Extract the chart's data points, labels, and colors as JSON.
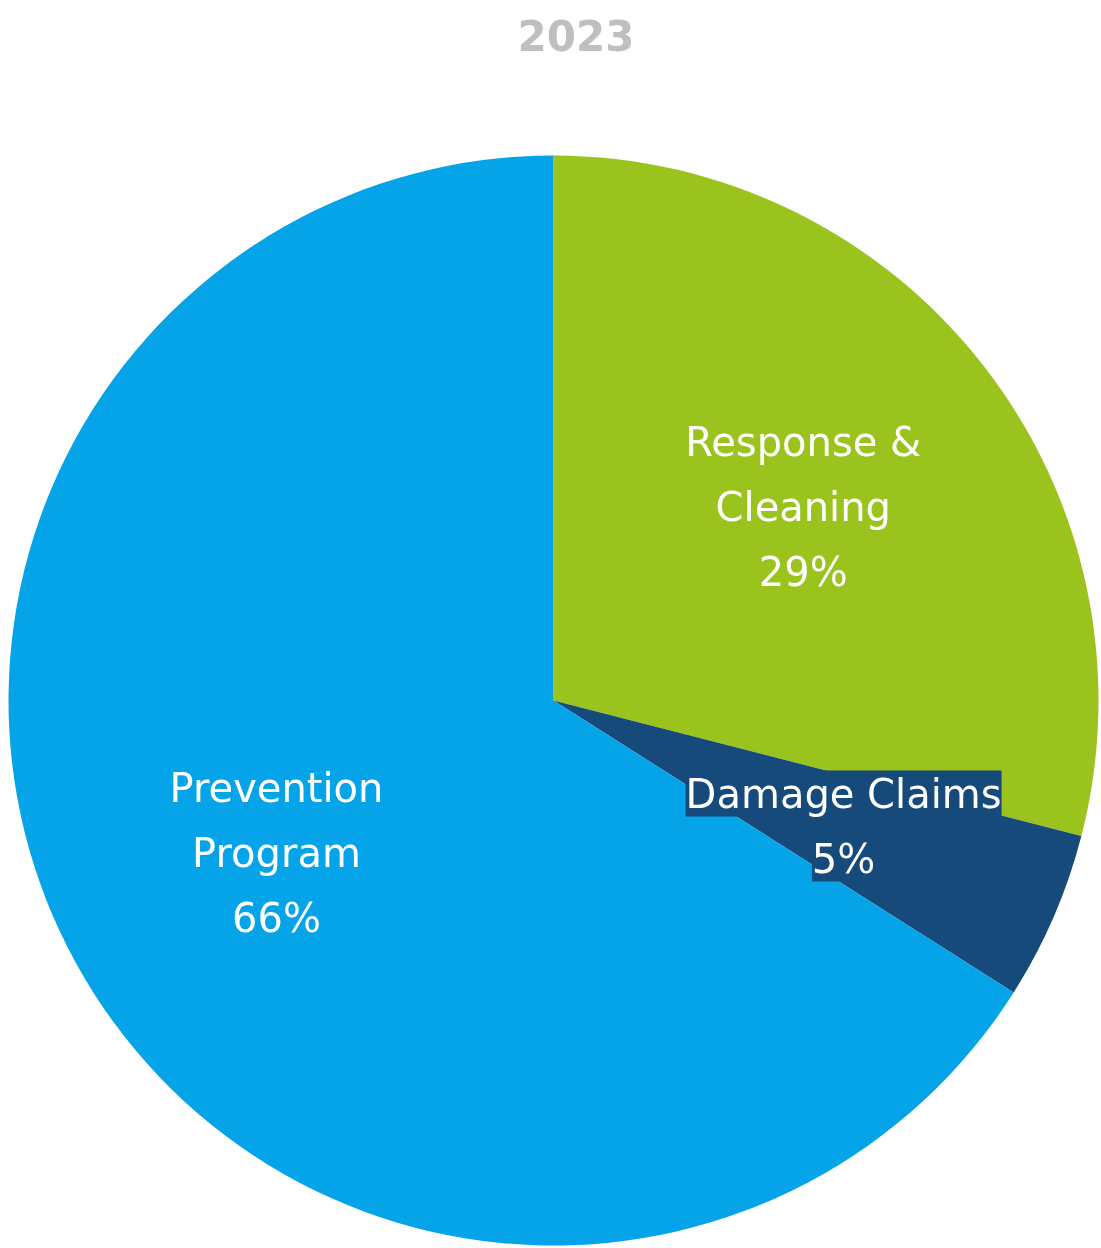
{
  "chart_data": {
    "type": "pie",
    "title": "2023",
    "categories": [
      "Response & Cleaning",
      "Damage Claims",
      "Prevention Program"
    ],
    "values": [
      29,
      5,
      66
    ],
    "colors": [
      "#9bc31e",
      "#154a7a",
      "#05a3e8"
    ],
    "value_labels": [
      "29%",
      "5%",
      "66%"
    ]
  }
}
